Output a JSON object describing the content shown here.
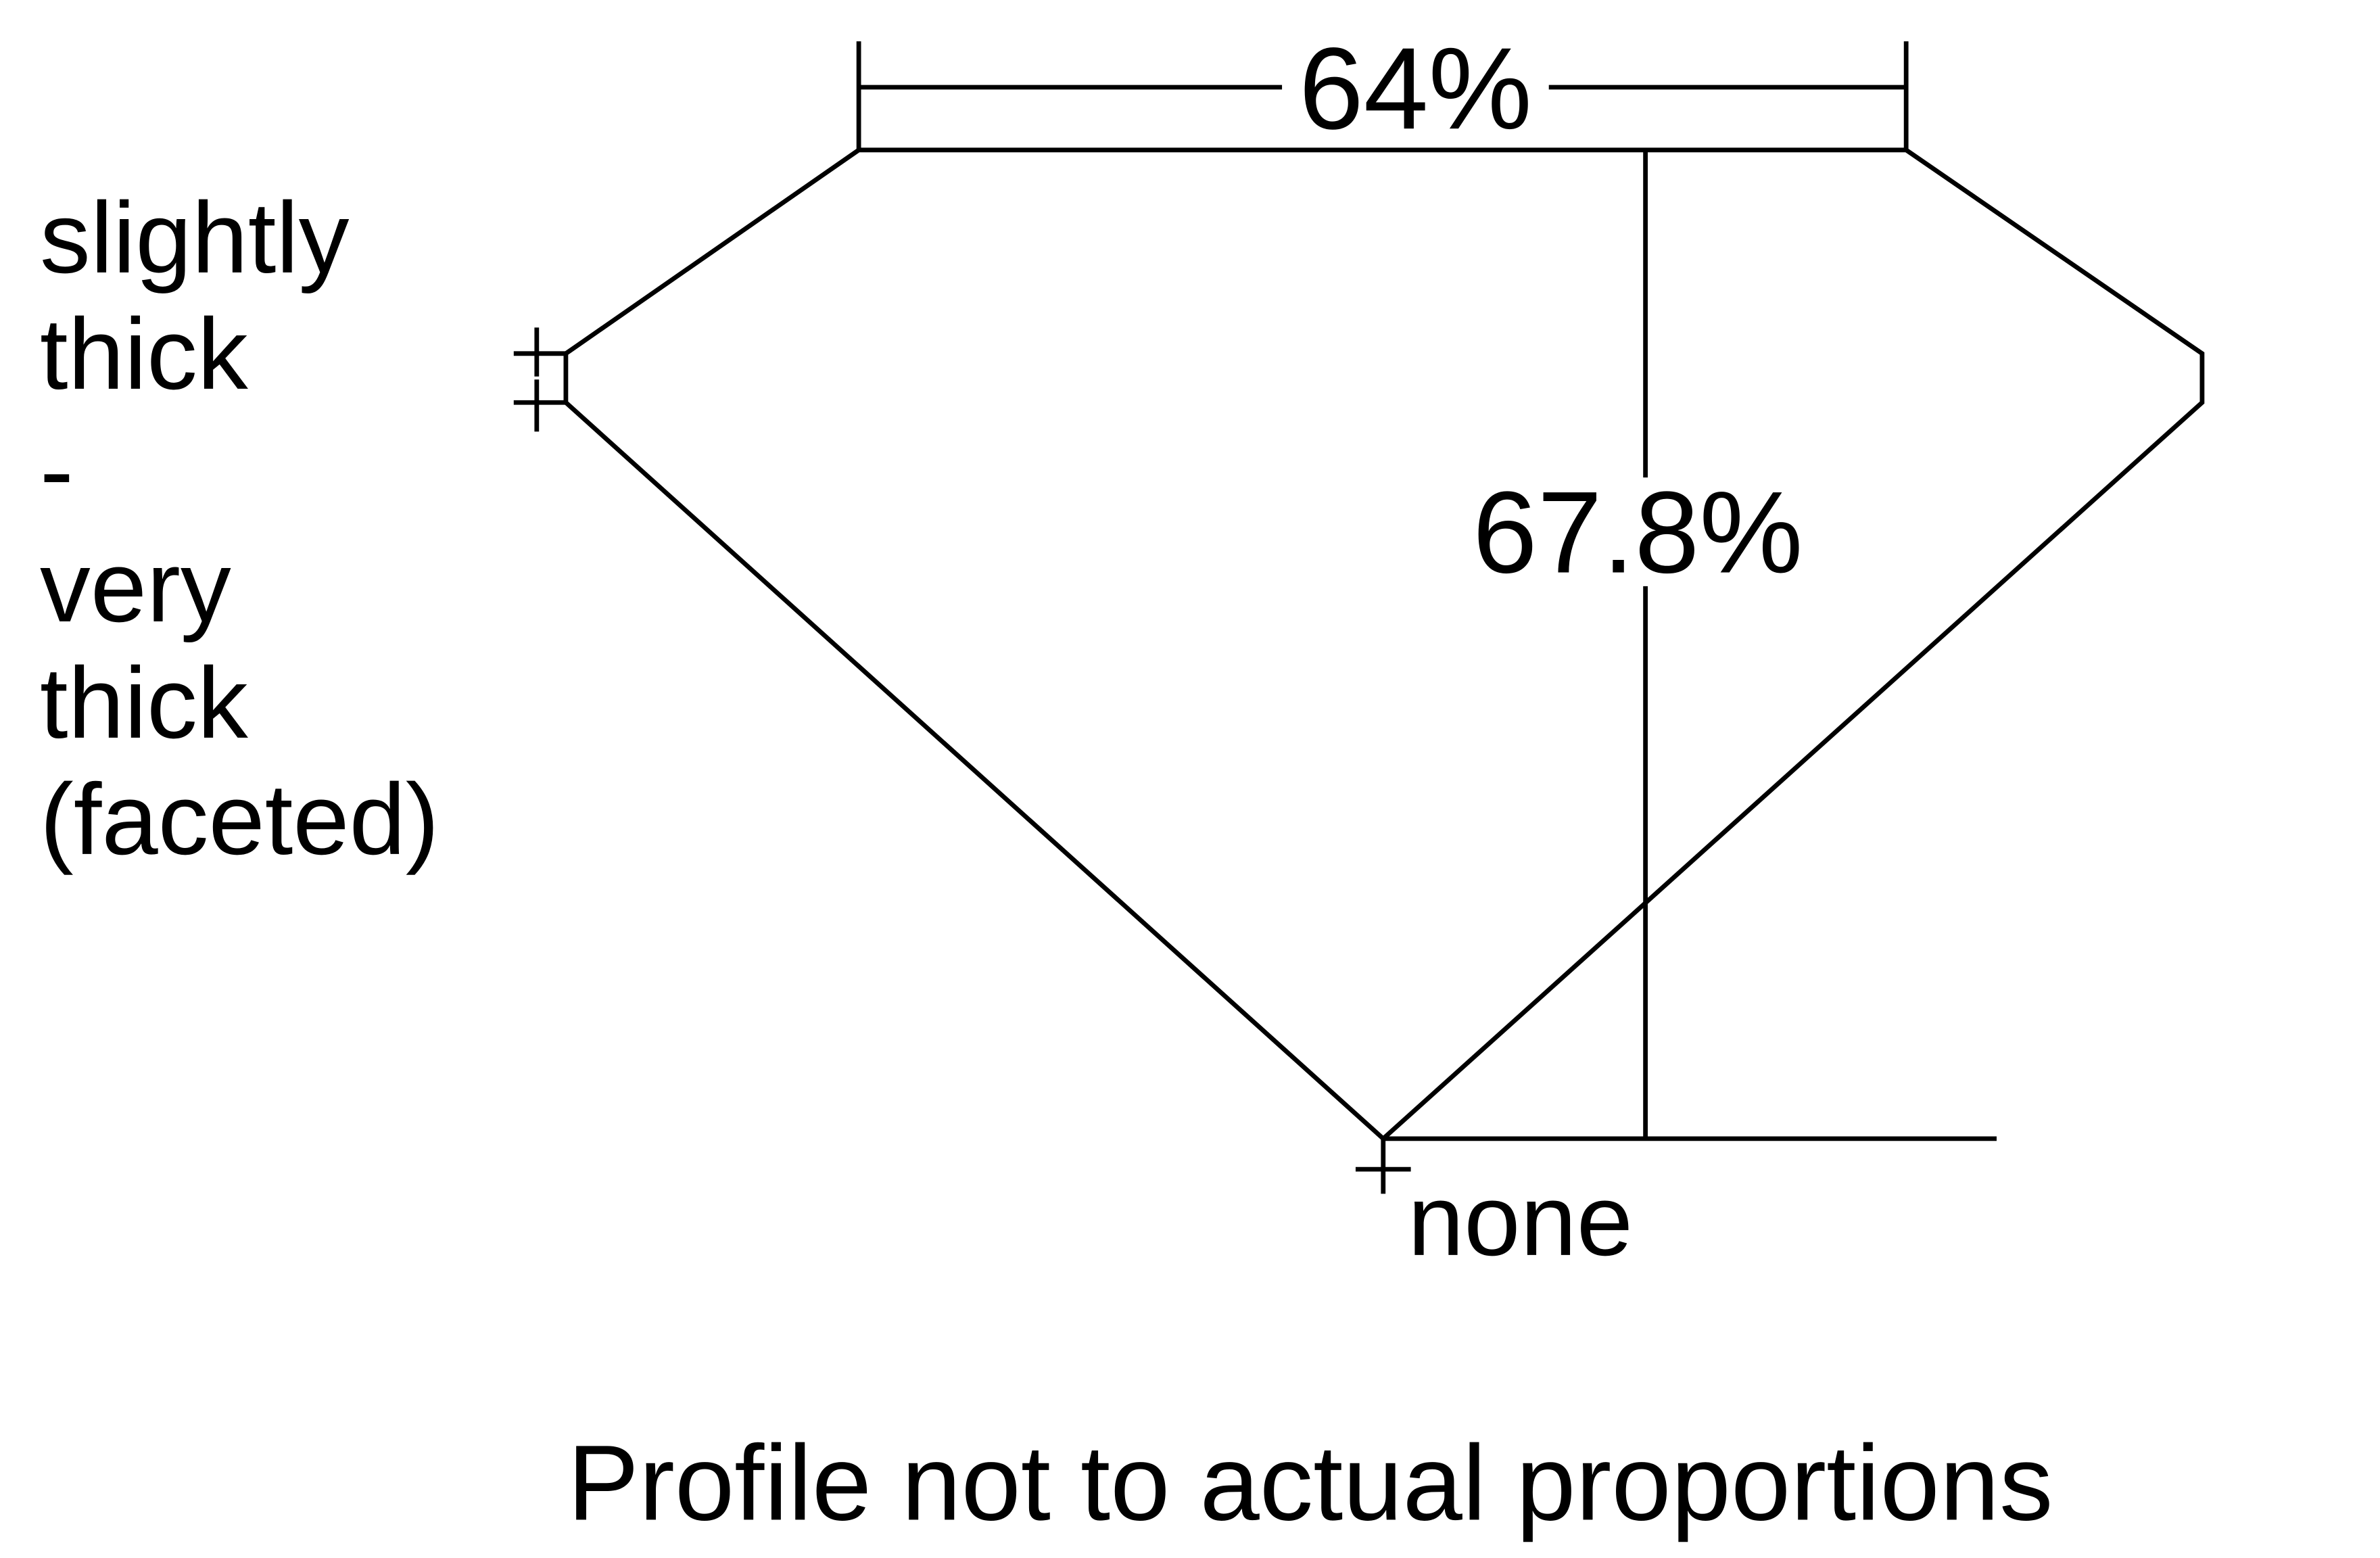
{
  "diagram": {
    "table_percentage": "64%",
    "total_depth_percentage": "67.8%",
    "girdle_label_lines": [
      "slightly",
      "thick",
      "-",
      "very",
      "thick",
      "(faceted)"
    ],
    "culet_label": "none",
    "caption": "Profile not to actual proportions",
    "line_color": "#000000",
    "background_color": "#ffffff"
  }
}
